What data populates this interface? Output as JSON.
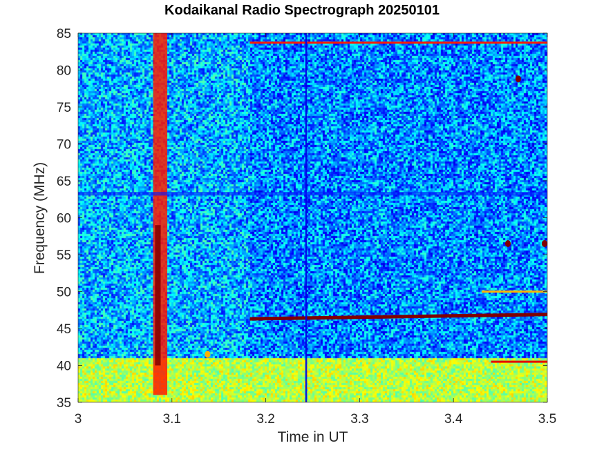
{
  "chart_data": {
    "type": "heatmap",
    "title": "Kodaikanal Radio Spectrograph  20250101",
    "xlabel": "Time in UT",
    "ylabel": "Frequency (MHz)",
    "xlim": [
      3.0,
      3.5
    ],
    "ylim": [
      35,
      85
    ],
    "xticks": [
      "3",
      "3.1",
      "3.2",
      "3.3",
      "3.4",
      "3.5"
    ],
    "xtick_values": [
      3.0,
      3.1,
      3.2,
      3.3,
      3.4,
      3.5
    ],
    "yticks": [
      "35",
      "40",
      "45",
      "50",
      "55",
      "60",
      "65",
      "70",
      "75",
      "80",
      "85"
    ],
    "ytick_values": [
      35,
      40,
      45,
      50,
      55,
      60,
      65,
      70,
      75,
      80,
      85
    ],
    "colormap": "jet",
    "grid": false,
    "background_intensity": 0.3,
    "features": [
      {
        "kind": "burst",
        "t_start": 3.08,
        "t_end": 3.095,
        "f_low": 36,
        "f_high": 85,
        "intensity": 0.85
      },
      {
        "kind": "burst",
        "t_start": 3.082,
        "t_end": 3.088,
        "f_low": 40,
        "f_high": 59,
        "intensity": 1.0
      },
      {
        "kind": "interference_line",
        "t_start": 3.183,
        "t_end": 3.5,
        "freq_start": 46.3,
        "freq_end": 46.9,
        "intensity": 1.0
      },
      {
        "kind": "interference_line",
        "t_start": 3.183,
        "t_end": 3.5,
        "freq_start": 83.7,
        "freq_end": 83.7,
        "intensity": 0.85
      },
      {
        "kind": "low_band_noise",
        "t_start": 3.0,
        "t_end": 3.5,
        "f_low": 35,
        "f_high": 41,
        "intensity": 0.6
      },
      {
        "kind": "dark_stripe",
        "t_start": 3.242,
        "t_end": 3.244,
        "f_low": 35,
        "f_high": 85,
        "intensity": 0.1
      },
      {
        "kind": "dark_band",
        "t_start": 3.0,
        "t_end": 3.5,
        "f_low": 63.0,
        "f_high": 63.5,
        "intensity": 0.15
      },
      {
        "kind": "spot",
        "t": 3.458,
        "freq": 56.5,
        "intensity": 1.0
      },
      {
        "kind": "spot",
        "t": 3.497,
        "freq": 56.5,
        "intensity": 1.0
      },
      {
        "kind": "spot",
        "t": 3.469,
        "freq": 78.8,
        "intensity": 1.0
      },
      {
        "kind": "spot",
        "t": 3.138,
        "freq": 41.5,
        "intensity": 0.7
      },
      {
        "kind": "segment",
        "t_start": 3.44,
        "t_end": 3.5,
        "freq": 40.5,
        "intensity": 0.9
      },
      {
        "kind": "segment",
        "t_start": 3.43,
        "t_end": 3.5,
        "freq": 50.0,
        "intensity": 0.7
      }
    ]
  }
}
